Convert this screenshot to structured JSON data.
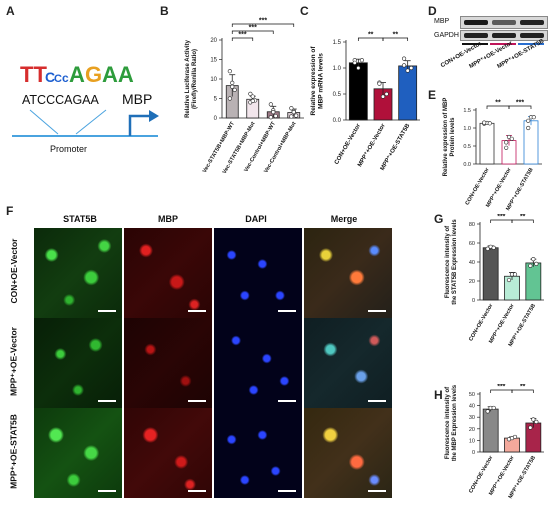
{
  "panel_letters": {
    "a": "A",
    "b": "B",
    "c": "C",
    "d": "D",
    "e": "E",
    "f": "F",
    "g": "G",
    "h": "H"
  },
  "panel_a": {
    "motif_text": "ATCCCAGAA",
    "gene": "MBP",
    "promoter": "Promoter"
  },
  "panel_d": {
    "bands": [
      "MBP",
      "GAPDH"
    ],
    "lanes": [
      "CON+OE-Vector",
      "MPP⁺+OE-Vector",
      "MPP⁺+OE-STAT5B"
    ]
  },
  "panel_f": {
    "columns": [
      "STAT5B",
      "MBP",
      "DAPI",
      "Merge"
    ],
    "rows": [
      "CON+OE-Vector",
      "MPP⁺+OE-Vector",
      "MPP⁺+OE-STAT5B"
    ]
  },
  "chart_data": [
    {
      "id": "B",
      "type": "bar",
      "ylabel": "Relative Luciferase Activity\n(Firefly/Renilla Ratio)",
      "ylim": [
        0,
        20
      ],
      "ticks": [
        0,
        5,
        10,
        15,
        20
      ],
      "categories": [
        "Vec-STAT5B+MBP-WT",
        "Vec-STAT5B+MBP-Mut",
        "Vec-Control+MBP-WT",
        "Vec-Control+MBP-Mut"
      ],
      "values": [
        8.3,
        4.8,
        1.6,
        1.4
      ],
      "errors": [
        2.8,
        0.8,
        1.4,
        0.9
      ],
      "points": [
        [
          12.0,
          9.0,
          7.2,
          5.0,
          8.0
        ],
        [
          6.2,
          5.5,
          4.5,
          4.0,
          4.4
        ],
        [
          3.5,
          2.0,
          0.5,
          0.2,
          1.5
        ],
        [
          2.5,
          1.8,
          0.6,
          0.4,
          1.5
        ]
      ],
      "colors": [
        "#b9b2b4",
        "#f2e6ec",
        "#9c7a86",
        "#d8cad0"
      ],
      "significance": [
        {
          "from": 0,
          "to": 1,
          "label": "***"
        },
        {
          "from": 0,
          "to": 2,
          "label": "***"
        },
        {
          "from": 0,
          "to": 3,
          "label": "***"
        }
      ]
    },
    {
      "id": "C",
      "type": "bar",
      "ylabel": "Relative expression of\nMBP mRNA levels",
      "ylim": [
        0,
        1.5
      ],
      "ticks": [
        0.0,
        0.5,
        1.0,
        1.5
      ],
      "categories": [
        "CON+OE-Vector",
        "MPP⁺+OE-Vector",
        "MPP⁺+OE-STAT5B"
      ],
      "values": [
        1.1,
        0.6,
        1.04
      ],
      "errors": [
        0.07,
        0.12,
        0.1
      ],
      "points": [
        [
          1.15,
          1.0,
          1.15,
          1.1
        ],
        [
          0.72,
          0.45,
          0.5,
          0.7
        ],
        [
          1.18,
          0.95,
          1.0,
          1.05
        ]
      ],
      "colors": [
        "#000000",
        "#b0103a",
        "#1f5fbf"
      ],
      "significance": [
        {
          "from": 0,
          "to": 1,
          "label": "**"
        },
        {
          "from": 1,
          "to": 2,
          "label": "**"
        }
      ]
    },
    {
      "id": "E",
      "type": "bar",
      "ylabel": "Relative expression of MBP\nProtein levels",
      "ylim": [
        0,
        1.5
      ],
      "ticks": [
        0.0,
        0.5,
        1.0,
        1.5
      ],
      "categories": [
        "CON+OE-Vector",
        "MPP⁺+OE-Vector",
        "MPP⁺+OE-STAT5B"
      ],
      "values": [
        1.13,
        0.65,
        1.2
      ],
      "errors": [
        0.04,
        0.14,
        0.12
      ],
      "points": [
        [
          1.12,
          1.14,
          1.13,
          1.15
        ],
        [
          0.45,
          0.75,
          0.7,
          0.6
        ],
        [
          1.0,
          1.3,
          1.3,
          1.2
        ]
      ],
      "colors": [
        "#ffffff",
        "#ffffff",
        "#ffffff"
      ],
      "edges": [
        "#333333",
        "#c0155a",
        "#2a7fd4"
      ],
      "significance": [
        {
          "from": 0,
          "to": 1,
          "label": "**"
        },
        {
          "from": 1,
          "to": 2,
          "label": "***"
        }
      ]
    },
    {
      "id": "G",
      "type": "bar",
      "ylabel": "Fluorescence intensity of\nthe STAT5B Expression levels",
      "ylim": [
        0,
        80
      ],
      "ticks": [
        0,
        20,
        40,
        60,
        80
      ],
      "categories": [
        "CON+OE-Vector",
        "MPP⁺+OE-Vector",
        "MPP⁺+OE-STAT5B"
      ],
      "values": [
        55,
        25,
        39
      ],
      "errors": [
        2,
        4,
        4
      ],
      "points": [
        [
          54,
          56,
          55
        ],
        [
          21,
          27,
          27
        ],
        [
          36,
          43,
          38
        ]
      ],
      "colors": [
        "#555555",
        "#b8ecd6",
        "#62c493"
      ],
      "significance": [
        {
          "from": 0,
          "to": 1,
          "label": "***"
        },
        {
          "from": 1,
          "to": 2,
          "label": "**"
        }
      ]
    },
    {
      "id": "H",
      "type": "bar",
      "ylabel": "Fluorescence intensity of\nthe MBP Expression levels",
      "ylim": [
        0,
        50
      ],
      "ticks": [
        0,
        10,
        20,
        30,
        40,
        50
      ],
      "categories": [
        "CON+OE-Vector",
        "MPP⁺+OE-Vector",
        "MPP⁺+OE-STAT5B"
      ],
      "values": [
        37,
        12,
        25
      ],
      "errors": [
        2,
        1,
        4
      ],
      "points": [
        [
          35,
          38,
          38
        ],
        [
          11,
          12,
          13
        ],
        [
          21,
          28,
          26
        ]
      ],
      "colors": [
        "#888888",
        "#f3a99c",
        "#a8244a"
      ],
      "significance": [
        {
          "from": 0,
          "to": 1,
          "label": "***"
        },
        {
          "from": 1,
          "to": 2,
          "label": "**"
        }
      ]
    }
  ]
}
